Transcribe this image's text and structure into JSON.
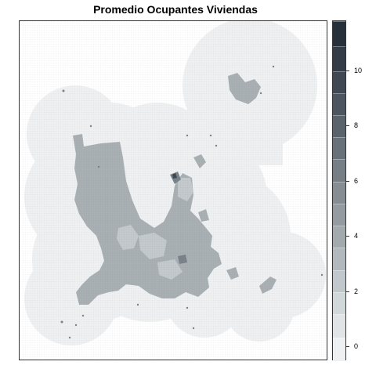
{
  "title": "Promedio Ocupantes Viviendas",
  "legend": {
    "min": -0.5,
    "max": 11.8,
    "ticks": [
      "0",
      "2",
      "4",
      "6",
      "8",
      "10"
    ],
    "tick_values": [
      0,
      2,
      4,
      6,
      8,
      10
    ],
    "bins": [
      {
        "from": -0.5,
        "to": 0.35,
        "color": "#eef0f1"
      },
      {
        "from": 0.35,
        "to": 1.2,
        "color": "#e1e4e5"
      },
      {
        "from": 1.2,
        "to": 2.0,
        "color": "#d2d7d9"
      },
      {
        "from": 2.0,
        "to": 2.8,
        "color": "#c1c7ca"
      },
      {
        "from": 2.8,
        "to": 3.6,
        "color": "#b2b8bc"
      },
      {
        "from": 3.6,
        "to": 4.4,
        "color": "#a3aaae"
      },
      {
        "from": 4.4,
        "to": 5.2,
        "color": "#949ba1"
      },
      {
        "from": 5.2,
        "to": 6.0,
        "color": "#868d93"
      },
      {
        "from": 6.0,
        "to": 6.8,
        "color": "#777f86"
      },
      {
        "from": 6.8,
        "to": 7.6,
        "color": "#687179"
      },
      {
        "from": 7.6,
        "to": 8.4,
        "color": "#5a636c"
      },
      {
        "from": 8.4,
        "to": 9.2,
        "color": "#4c5560"
      },
      {
        "from": 9.2,
        "to": 10.0,
        "color": "#3f4853"
      },
      {
        "from": 10.0,
        "to": 10.9,
        "color": "#333c47"
      },
      {
        "from": 10.9,
        "to": 11.8,
        "color": "#26303b"
      }
    ]
  },
  "colors": {
    "background_zone": "#eef0f1",
    "urban_main": "#a9b0b4",
    "urban_light": "#c3c9cc",
    "urban_dark": "#7b838a",
    "urban_darkest": "#3f4853"
  }
}
